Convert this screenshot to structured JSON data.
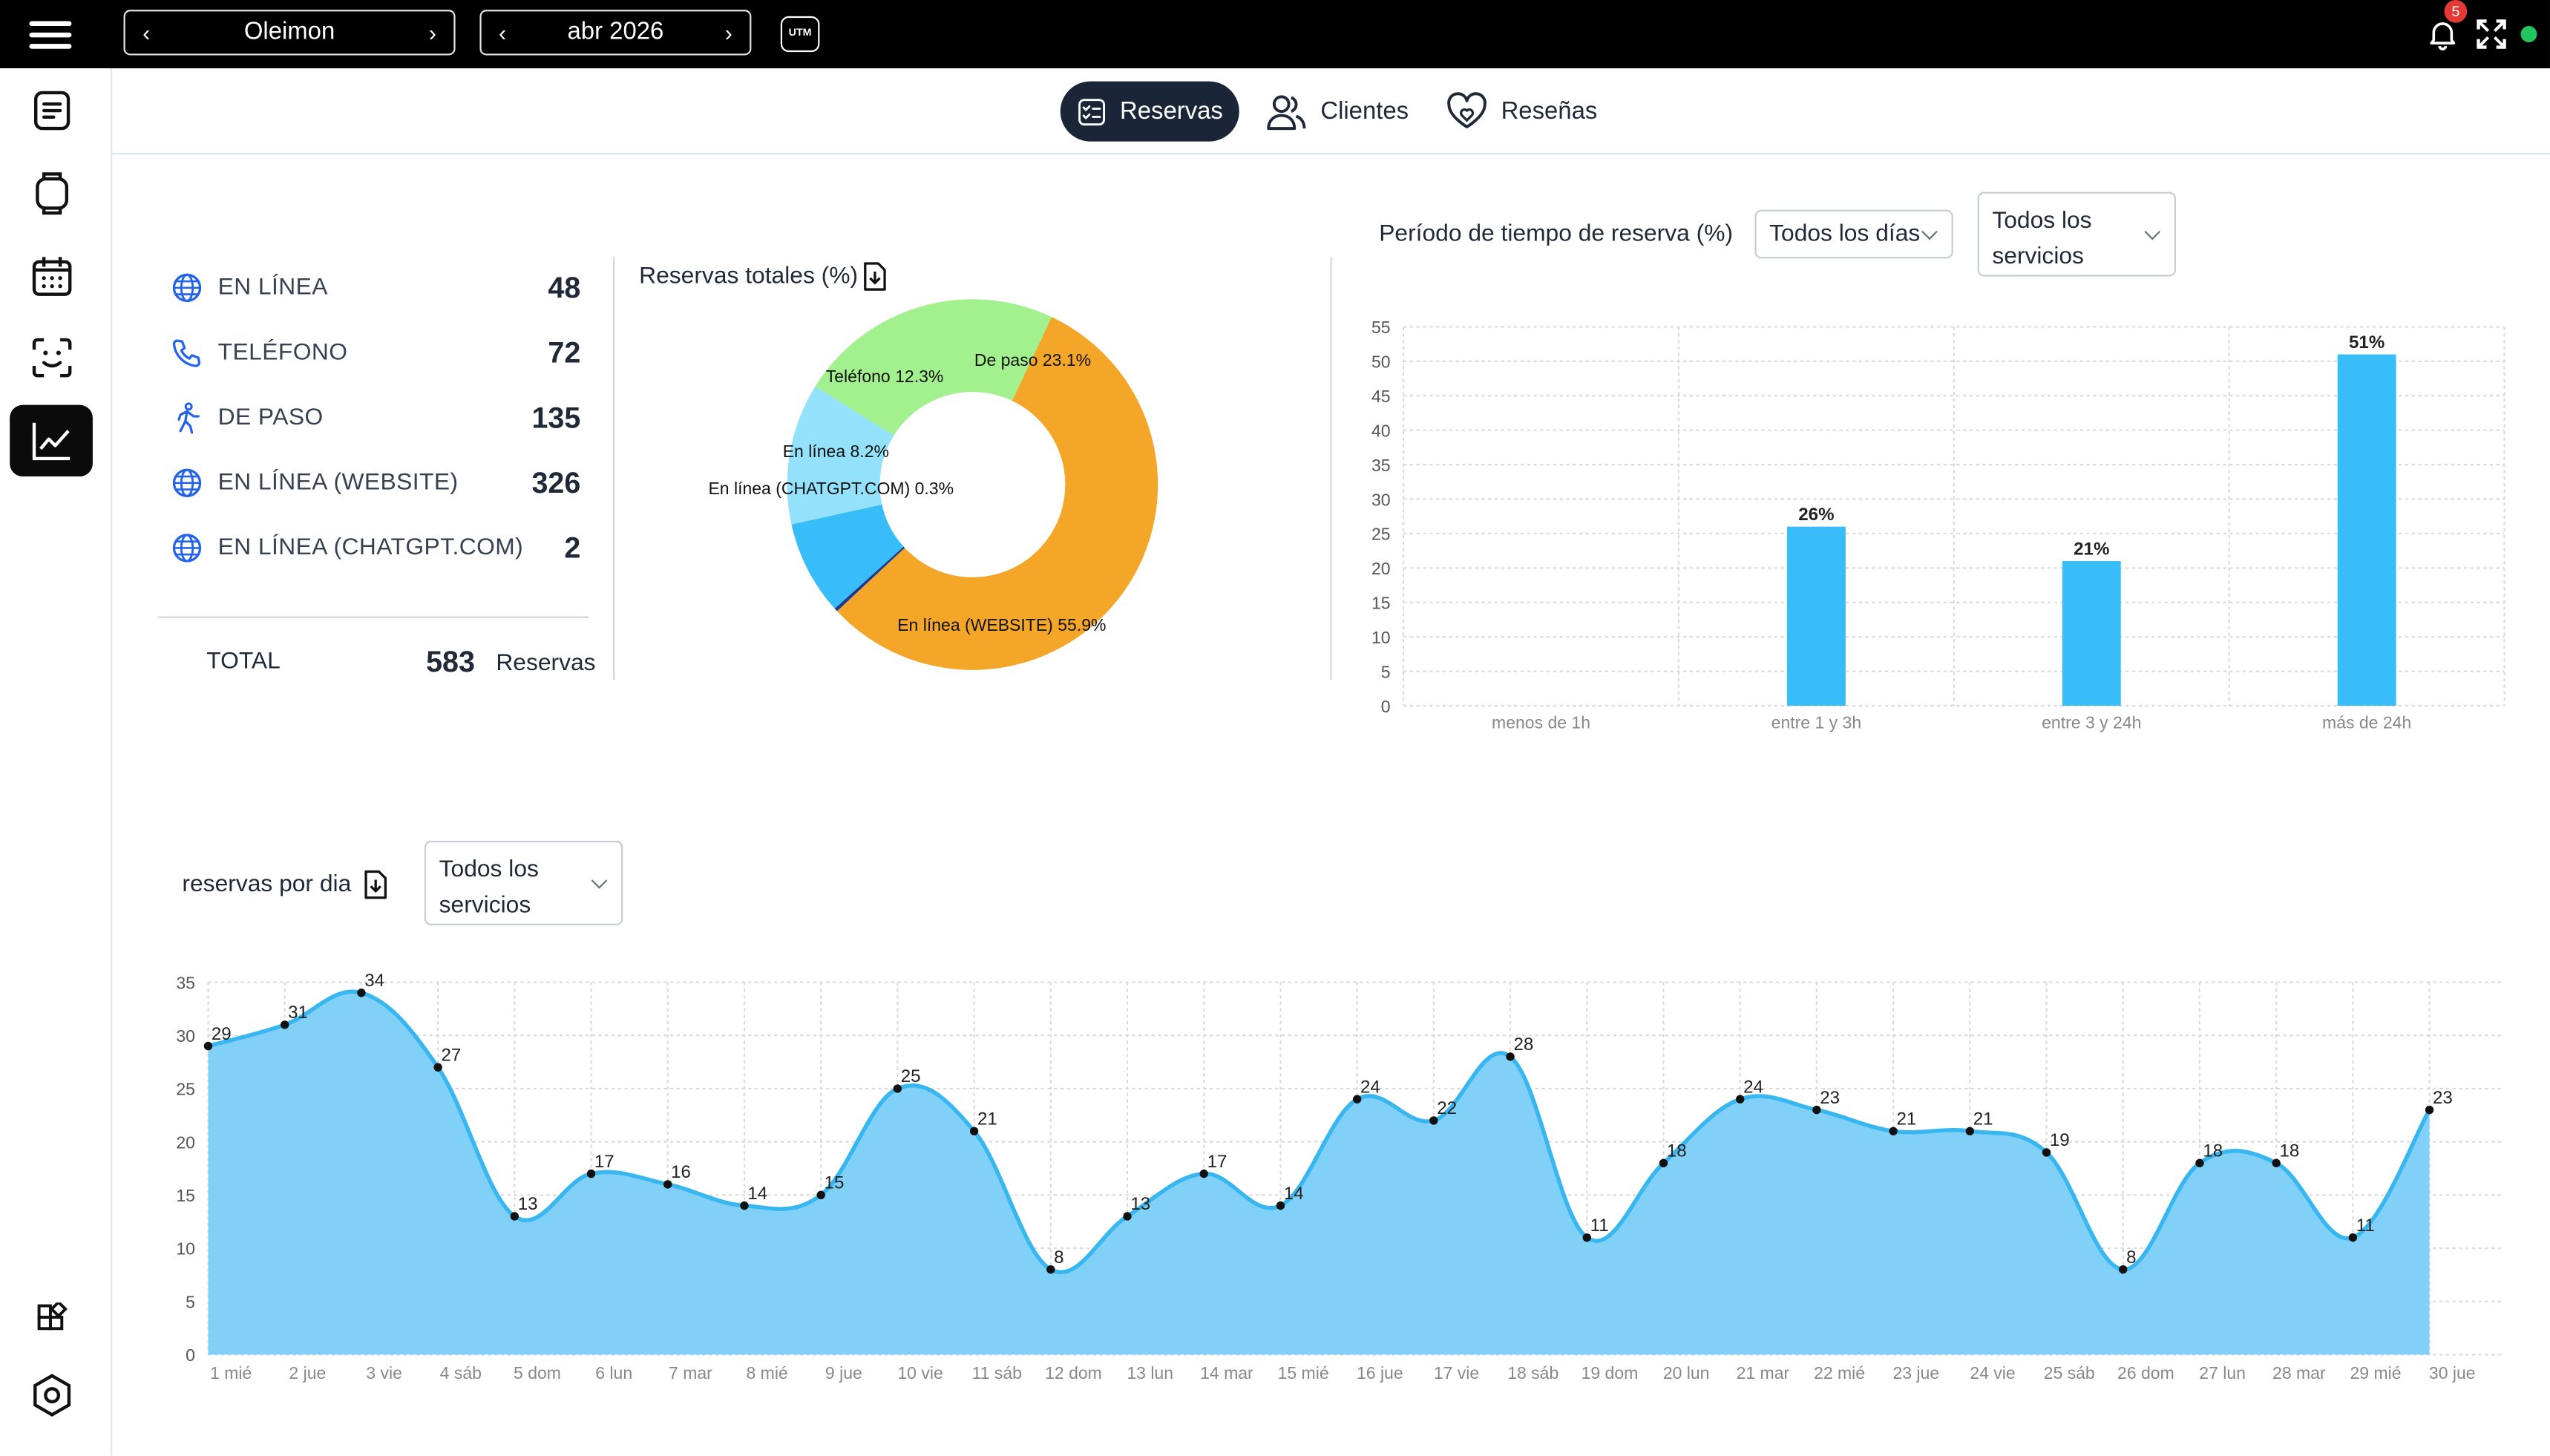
{
  "topbar": {
    "venue": "Oleimon",
    "month": "abr 2026",
    "utm_label": "UTM",
    "notification_count": "5",
    "status_color": "#22c55e"
  },
  "sidebar": {
    "items": [
      {
        "name": "list-icon"
      },
      {
        "name": "device-icon"
      },
      {
        "name": "calendar-icon"
      },
      {
        "name": "face-icon"
      },
      {
        "name": "analytics-icon",
        "active": true
      }
    ],
    "bottom": [
      {
        "name": "widgets-icon"
      },
      {
        "name": "settings-icon"
      }
    ]
  },
  "tabs": [
    {
      "label": "Reservas",
      "active": true,
      "icon": "checklist-icon"
    },
    {
      "label": "Clientes",
      "active": false,
      "icon": "users-icon"
    },
    {
      "label": "Reseñas",
      "active": false,
      "icon": "heart-icon"
    }
  ],
  "summary": {
    "sources": [
      {
        "label": "EN LÍNEA",
        "value": "48",
        "icon": "globe-icon"
      },
      {
        "label": "TELÉFONO",
        "value": "72",
        "icon": "phone-icon"
      },
      {
        "label": "DE PASO",
        "value": "135",
        "icon": "walk-icon"
      },
      {
        "label": "EN LÍNEA (WEBSITE)",
        "value": "326",
        "icon": "globe-icon"
      },
      {
        "label": "EN LÍNEA (CHATGPT.COM)",
        "value": "2",
        "icon": "globe-icon"
      }
    ],
    "total_label": "TOTAL",
    "total_value": "583",
    "total_unit": "Reservas"
  },
  "donut_title": "Reservas totales (%)",
  "period_title": "Período de tiempo de reserva (%)",
  "filters": {
    "days": "Todos los días",
    "services": "Todos los servicios"
  },
  "daily_title": "reservas por dia",
  "daily_filter": "Todos los servicios",
  "colors": {
    "online": "#38bdf8",
    "phone": "#93e1fb",
    "walkin": "#a3f08f",
    "website": "#f4a629",
    "chatgpt": "#1f3a8a",
    "bar": "#38bdf8",
    "area": "#80d0f8",
    "line": "#38b6f0",
    "accent": "#1a2637"
  },
  "chart_data": [
    {
      "type": "pie",
      "title": "Reservas totales (%)",
      "categories": [
        "En línea",
        "Teléfono",
        "De paso",
        "En línea (WEBSITE)",
        "En línea (CHATGPT.COM)"
      ],
      "values": [
        8.2,
        12.3,
        23.1,
        55.9,
        0.3
      ],
      "labels": [
        "En línea 8.2%",
        "Teléfono 12.3%",
        "De paso 23.1%",
        "En línea (WEBSITE) 55.9%",
        "En línea (CHATGPT.COM) 0.3%"
      ],
      "donut": true
    },
    {
      "type": "bar",
      "title": "Período de tiempo de reserva (%)",
      "categories": [
        "menos de 1h",
        "entre 1 y 3h",
        "entre 3 y 24h",
        "más de 24h"
      ],
      "values": [
        0,
        26,
        21,
        51
      ],
      "data_labels": [
        "",
        "26%",
        "21%",
        "51%"
      ],
      "ylim": [
        0,
        55
      ],
      "yticks": [
        0,
        5,
        10,
        15,
        20,
        25,
        30,
        35,
        40,
        45,
        50,
        55
      ],
      "grid": true
    },
    {
      "type": "area",
      "title": "reservas por dia",
      "categories": [
        "1 mié",
        "2 jue",
        "3 vie",
        "4 sáb",
        "5 dom",
        "6 lun",
        "7 mar",
        "8 mié",
        "9 jue",
        "10 vie",
        "11 sáb",
        "12 dom",
        "13 lun",
        "14 mar",
        "15 mié",
        "16 jue",
        "17 vie",
        "18 sáb",
        "19 dom",
        "20 lun",
        "21 mar",
        "22 mié",
        "23 jue",
        "24 vie",
        "25 sáb",
        "26 dom",
        "27 lun",
        "28 mar",
        "29 mié",
        "30 jue"
      ],
      "values": [
        29,
        31,
        34,
        27,
        13,
        17,
        16,
        14,
        15,
        25,
        21,
        8,
        13,
        17,
        14,
        24,
        22,
        28,
        11,
        18,
        24,
        23,
        21,
        21,
        19,
        8,
        18,
        18,
        11,
        23
      ],
      "ylim": [
        0,
        35
      ],
      "yticks": [
        0,
        5,
        10,
        15,
        20,
        25,
        30,
        35
      ],
      "grid": true
    }
  ]
}
